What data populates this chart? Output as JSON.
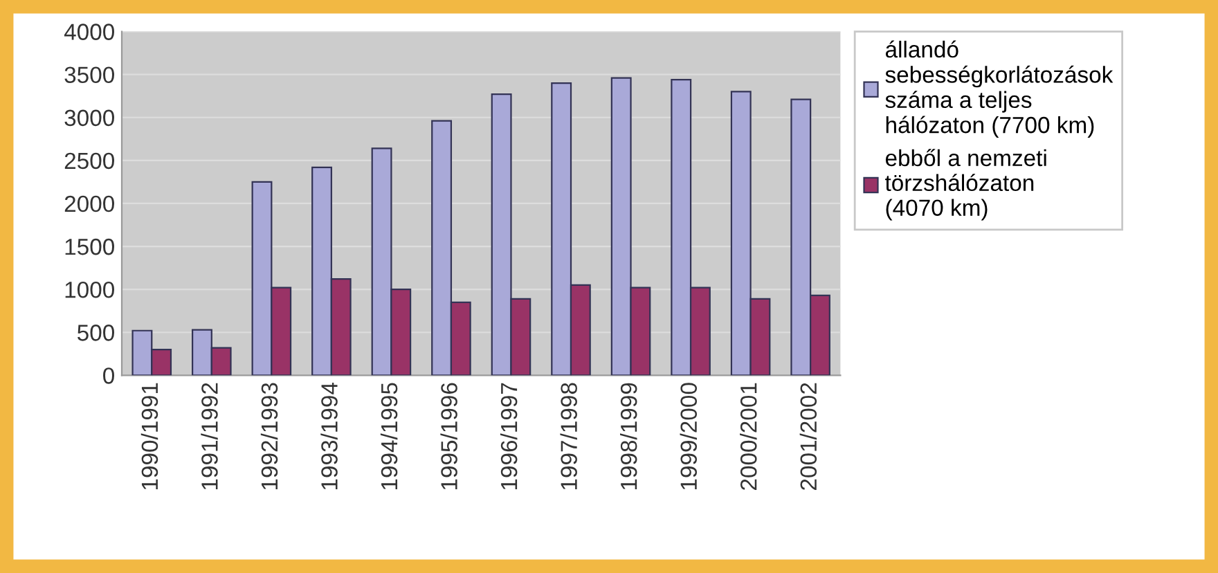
{
  "chart_data": {
    "type": "bar",
    "categories": [
      "1990/1991",
      "1991/1992",
      "1992/1993",
      "1993/1994",
      "1994/1995",
      "1995/1996",
      "1996/1997",
      "1997/1998",
      "1998/1999",
      "1999/2000",
      "2000/2001",
      "2001/2002"
    ],
    "series": [
      {
        "name": "állandó\nsebességkorlátozások\nszáma a teljes\nhálózaton (7700 km)",
        "color": "#a9a9d8",
        "values": [
          520,
          530,
          2250,
          2420,
          2640,
          2960,
          3270,
          3400,
          3460,
          3440,
          3300,
          3210
        ]
      },
      {
        "name": "ebből a nemzeti\ntörzshálózaton\n(4070 km)",
        "color": "#993366",
        "values": [
          300,
          320,
          1020,
          1120,
          1000,
          850,
          890,
          1050,
          1020,
          1020,
          890,
          930
        ]
      }
    ],
    "ylim": [
      0,
      4000
    ],
    "yticks": [
      0,
      500,
      1000,
      1500,
      2000,
      2500,
      3000,
      3500,
      4000
    ],
    "grid": "y",
    "legend": "right"
  }
}
